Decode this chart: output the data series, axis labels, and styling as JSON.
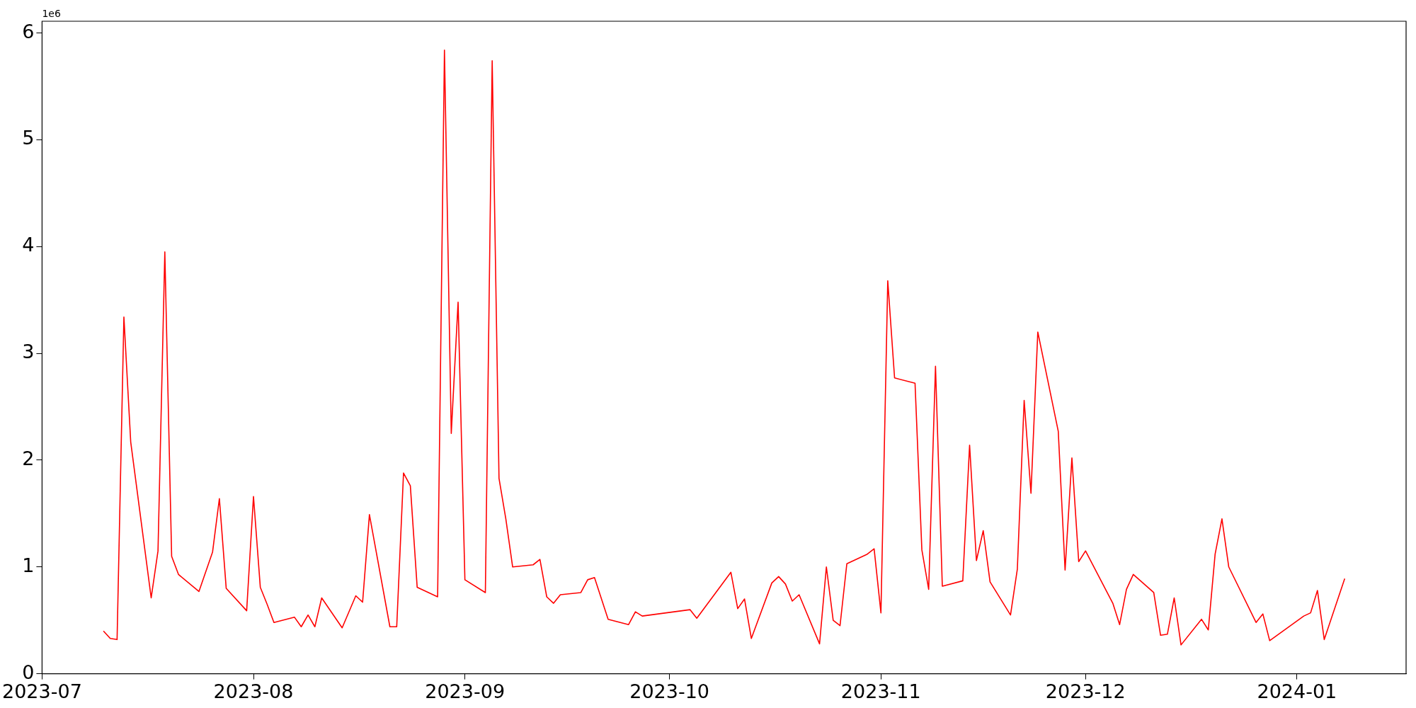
{
  "chart_data": {
    "type": "line",
    "annotations": [
      "1e6"
    ],
    "x": [
      "2023-07-10",
      "2023-07-11",
      "2023-07-12",
      "2023-07-13",
      "2023-07-14",
      "2023-07-17",
      "2023-07-18",
      "2023-07-19",
      "2023-07-20",
      "2023-07-21",
      "2023-07-24",
      "2023-07-26",
      "2023-07-27",
      "2023-07-28",
      "2023-07-31",
      "2023-08-01",
      "2023-08-02",
      "2023-08-03",
      "2023-08-04",
      "2023-08-07",
      "2023-08-08",
      "2023-08-09",
      "2023-08-10",
      "2023-08-11",
      "2023-08-14",
      "2023-08-16",
      "2023-08-17",
      "2023-08-18",
      "2023-08-21",
      "2023-08-22",
      "2023-08-23",
      "2023-08-24",
      "2023-08-25",
      "2023-08-28",
      "2023-08-29",
      "2023-08-30",
      "2023-08-31",
      "2023-09-01",
      "2023-09-04",
      "2023-09-05",
      "2023-09-06",
      "2023-09-07",
      "2023-09-08",
      "2023-09-11",
      "2023-09-12",
      "2023-09-13",
      "2023-09-14",
      "2023-09-15",
      "2023-09-18",
      "2023-09-19",
      "2023-09-20",
      "2023-09-22",
      "2023-09-25",
      "2023-09-26",
      "2023-09-27",
      "2023-10-04",
      "2023-10-05",
      "2023-10-10",
      "2023-10-11",
      "2023-10-12",
      "2023-10-13",
      "2023-10-16",
      "2023-10-17",
      "2023-10-18",
      "2023-10-19",
      "2023-10-20",
      "2023-10-23",
      "2023-10-24",
      "2023-10-25",
      "2023-10-26",
      "2023-10-27",
      "2023-10-30",
      "2023-10-31",
      "2023-11-01",
      "2023-11-02",
      "2023-11-03",
      "2023-11-06",
      "2023-11-07",
      "2023-11-08",
      "2023-11-09",
      "2023-11-10",
      "2023-11-13",
      "2023-11-14",
      "2023-11-15",
      "2023-11-16",
      "2023-11-17",
      "2023-11-20",
      "2023-11-21",
      "2023-11-22",
      "2023-11-23",
      "2023-11-24",
      "2023-11-27",
      "2023-11-28",
      "2023-11-29",
      "2023-11-30",
      "2023-12-01",
      "2023-12-05",
      "2023-12-06",
      "2023-12-07",
      "2023-12-08",
      "2023-12-11",
      "2023-12-12",
      "2023-12-13",
      "2023-12-14",
      "2023-12-15",
      "2023-12-18",
      "2023-12-19",
      "2023-12-20",
      "2023-12-21",
      "2023-12-22",
      "2023-12-26",
      "2023-12-27",
      "2023-12-28",
      "2024-01-02",
      "2024-01-03",
      "2024-01-04",
      "2024-01-05",
      "2024-01-08"
    ],
    "series": [
      {
        "color": "#ff0000",
        "values": [
          0.4,
          0.33,
          0.32,
          3.34,
          2.17,
          0.71,
          1.15,
          3.95,
          1.1,
          0.93,
          0.77,
          1.14,
          1.64,
          0.8,
          0.59,
          1.66,
          0.81,
          0.65,
          0.48,
          0.53,
          0.44,
          0.55,
          0.44,
          0.71,
          0.43,
          0.73,
          0.67,
          1.49,
          0.44,
          0.44,
          1.88,
          1.76,
          0.81,
          0.72,
          5.84,
          2.25,
          3.48,
          0.88,
          0.76,
          5.74,
          1.83,
          1.45,
          1.0,
          1.02,
          1.07,
          0.72,
          0.66,
          0.74,
          0.76,
          0.88,
          0.9,
          0.51,
          0.46,
          0.58,
          0.54,
          0.6,
          0.52,
          0.95,
          0.61,
          0.7,
          0.33,
          0.85,
          0.91,
          0.84,
          0.68,
          0.74,
          0.28,
          1.0,
          0.5,
          0.45,
          1.03,
          1.12,
          1.17,
          0.57,
          3.68,
          2.77,
          2.72,
          1.16,
          0.79,
          2.88,
          0.82,
          0.87,
          2.14,
          1.06,
          1.34,
          0.86,
          0.55,
          0.98,
          2.56,
          1.69,
          3.2,
          2.27,
          0.97,
          2.02,
          1.05,
          1.15,
          0.66,
          0.46,
          0.79,
          0.93,
          0.76,
          0.36,
          0.37,
          0.71,
          0.27,
          0.51,
          0.41,
          1.12,
          1.45,
          1.0,
          0.48,
          0.56,
          0.31,
          0.54,
          0.57,
          0.78,
          0.32,
          0.89
        ]
      }
    ],
    "xlim": [
      "2023-07-01",
      "2024-01-17"
    ],
    "xticks": [
      "2023-07",
      "2023-08",
      "2023-09",
      "2023-10",
      "2023-11",
      "2023-12",
      "2024-01"
    ],
    "ylim": [
      0,
      6.11
    ],
    "yticks": [
      0,
      1,
      2,
      3,
      4,
      5,
      6
    ],
    "grid": false,
    "legend": false,
    "marker": "none",
    "line_style": "solid"
  }
}
